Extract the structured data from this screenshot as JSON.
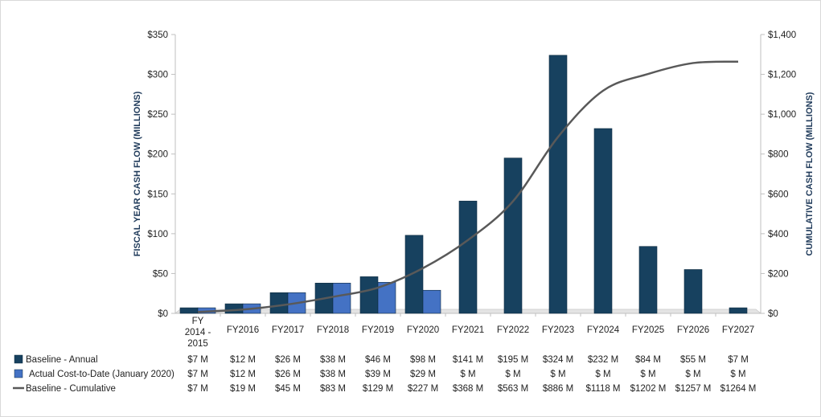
{
  "chart_data": {
    "type": "bar",
    "categories": [
      "FY 2014 - 2015",
      "FY2016",
      "FY2017",
      "FY2018",
      "FY2019",
      "FY2020",
      "FY2021",
      "FY2022",
      "FY2023",
      "FY2024",
      "FY2025",
      "FY2026",
      "FY2027"
    ],
    "category_lines": [
      [
        "FY",
        "2014 -",
        "2015"
      ],
      [
        "FY2016"
      ],
      [
        "FY2017"
      ],
      [
        "FY2018"
      ],
      [
        "FY2019"
      ],
      [
        "FY2020"
      ],
      [
        "FY2021"
      ],
      [
        "FY2022"
      ],
      [
        "FY2023"
      ],
      [
        "FY2024"
      ],
      [
        "FY2025"
      ],
      [
        "FY2026"
      ],
      [
        "FY2027"
      ]
    ],
    "ylabel": "FISCAL YEAR CASH FLOW (MILLIONS)",
    "y2label": "CUMULATIVE CASH FLOW (MILLIONS)",
    "ylim": [
      0,
      350
    ],
    "y2lim": [
      0,
      1400
    ],
    "yticks": [
      0,
      50,
      100,
      150,
      200,
      250,
      300,
      350
    ],
    "yticklabels": [
      "$0",
      "$50",
      "$100",
      "$150",
      "$200",
      "$250",
      "$300",
      "$350"
    ],
    "y2ticks": [
      0,
      200,
      400,
      600,
      800,
      1000,
      1200,
      1400
    ],
    "y2ticklabels": [
      "$0",
      "$200",
      "$400",
      "$600",
      "$800",
      "$1,000",
      "$1,200",
      "$1,400"
    ],
    "grid": false,
    "legend": "bottom data table",
    "series": [
      {
        "name": "Baseline - Annual",
        "type": "bar",
        "axis": "left",
        "color": "#17415f",
        "values": [
          7,
          12,
          26,
          38,
          46,
          98,
          141,
          195,
          324,
          232,
          84,
          55,
          7
        ],
        "table": [
          "$7 M",
          "$12 M",
          "$26 M",
          "$38 M",
          "$46 M",
          "$98 M",
          "$141 M",
          "$195 M",
          "$324 M",
          "$232 M",
          "$84 M",
          "$55 M",
          "$7 M"
        ]
      },
      {
        "name": "Actual Cost-to-Date (January 2020)",
        "type": "bar",
        "axis": "left",
        "color": "#4472c4",
        "values": [
          7,
          12,
          26,
          38,
          39,
          29,
          null,
          null,
          null,
          null,
          null,
          null,
          null
        ],
        "table": [
          "$7 M",
          "$12 M",
          "$26 M",
          "$38 M",
          "$39 M",
          "$29 M",
          "$ M",
          "$ M",
          "$ M",
          "$ M",
          "$ M",
          "$ M",
          "$ M"
        ]
      },
      {
        "name": "Baseline - Cumulative",
        "type": "line",
        "axis": "right",
        "color": "#595959",
        "values": [
          7,
          19,
          45,
          83,
          129,
          227,
          368,
          563,
          886,
          1118,
          1202,
          1257,
          1264
        ],
        "table": [
          "$7 M",
          "$19 M",
          "$45 M",
          "$83 M",
          "$129 M",
          "$227 M",
          "$368 M",
          "$563 M",
          "$886 M",
          "$1118 M",
          "$1202 M",
          "$1257 M",
          "$1264 M"
        ]
      }
    ]
  }
}
